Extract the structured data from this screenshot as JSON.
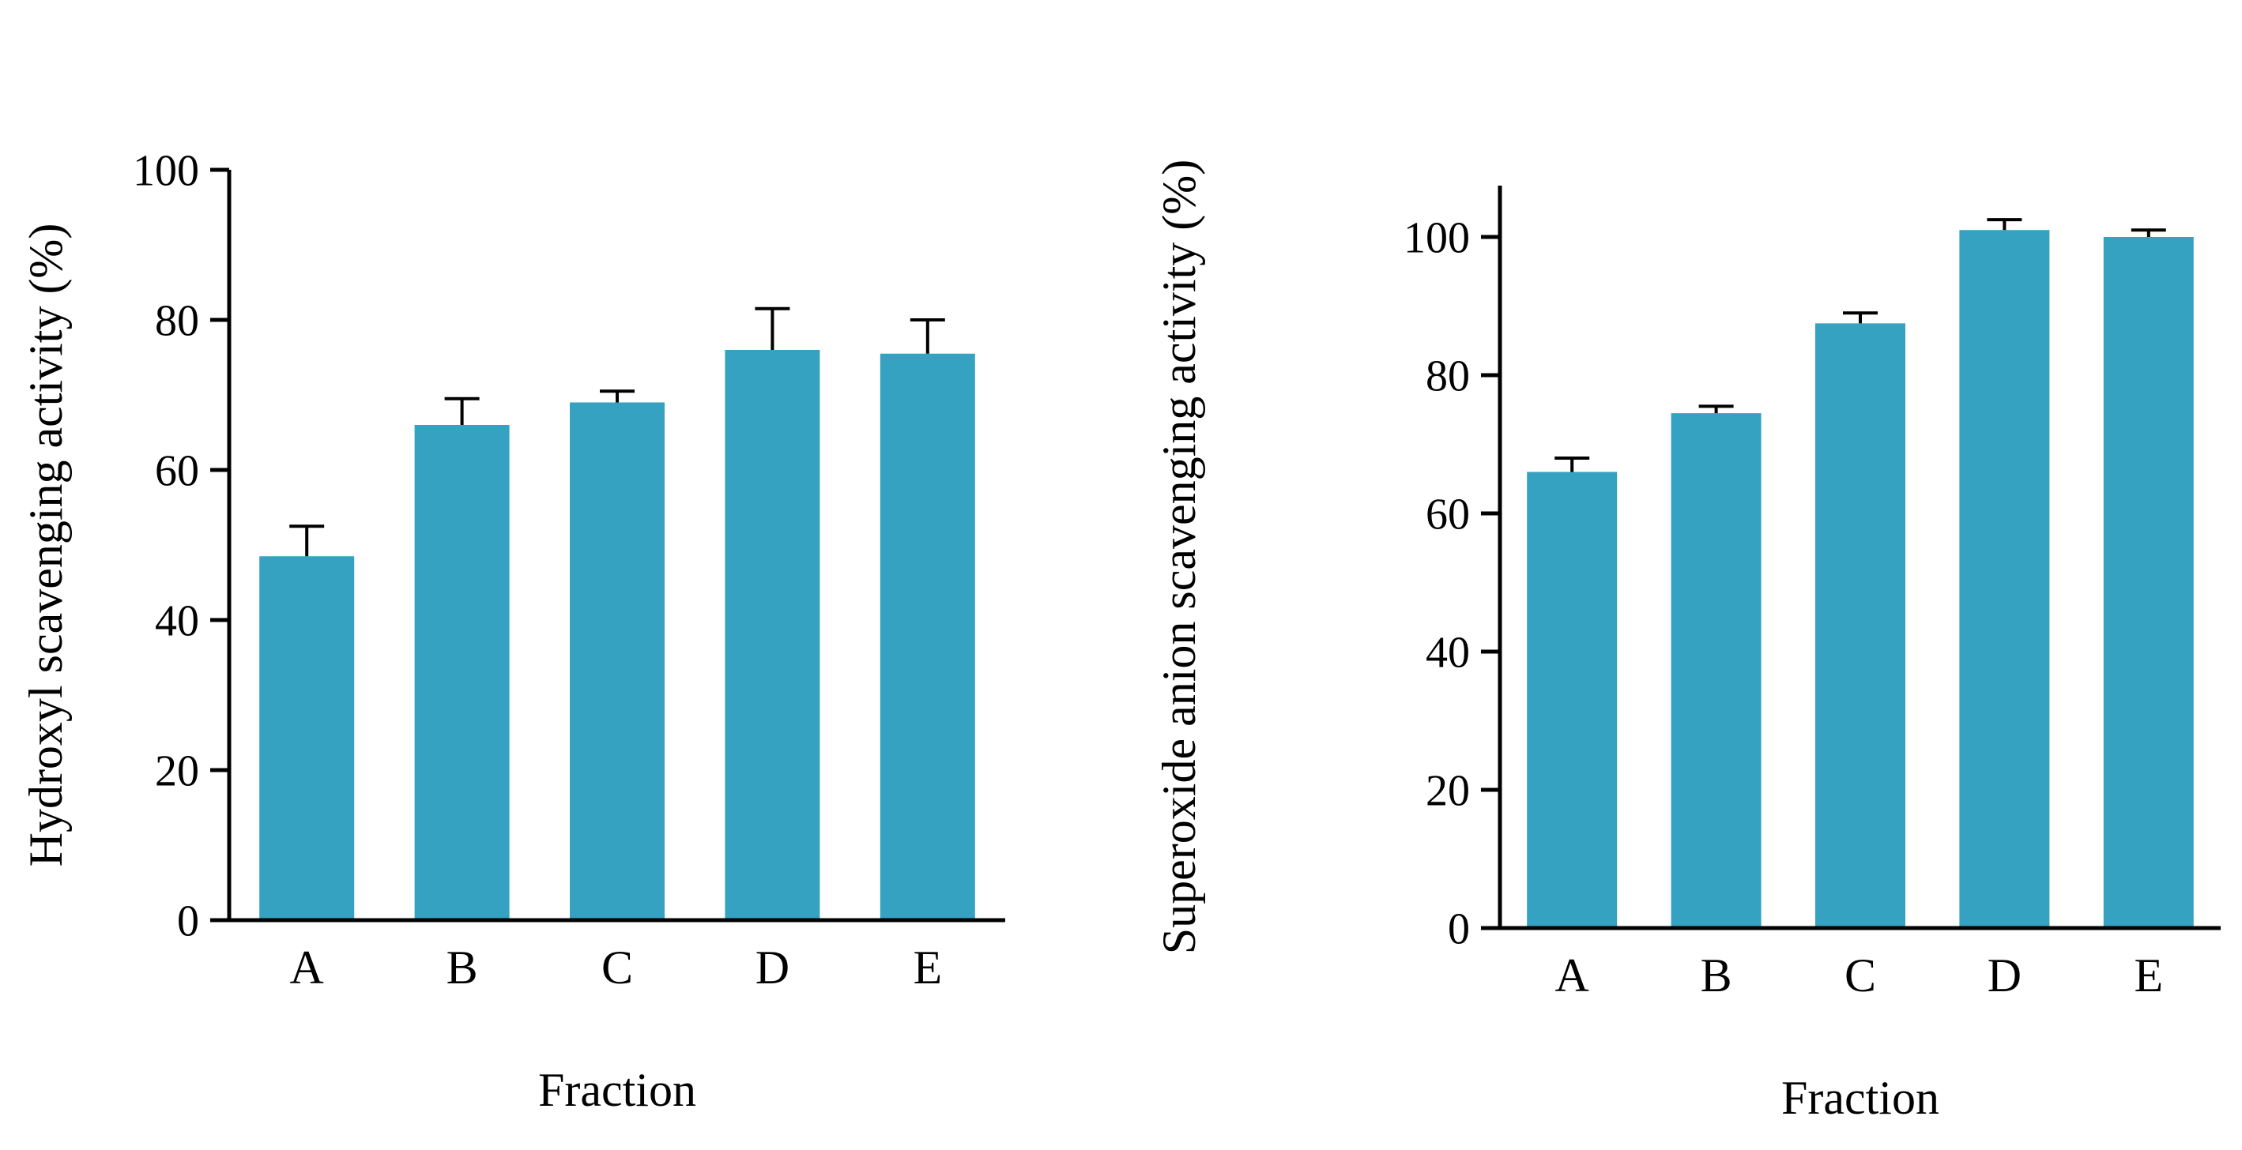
{
  "page": {
    "background": "#ffffff"
  },
  "chart_data": [
    {
      "type": "bar",
      "title": "",
      "categories": [
        "A",
        "B",
        "C",
        "D",
        "E"
      ],
      "values": [
        48.5,
        66,
        69,
        76,
        75.5
      ],
      "errors": [
        4,
        3.5,
        1.5,
        5.5,
        4.5
      ],
      "xlabel": "Fraction",
      "ylabel": "Hydroxyl scavenging activity (%)",
      "ylim": [
        0,
        100
      ],
      "yticks": [
        0,
        20,
        40,
        60,
        80,
        100
      ],
      "grid": false,
      "legend": "none",
      "bar_color": "#35A2C2",
      "error_color": "#000000",
      "axis_color": "#000000"
    },
    {
      "type": "bar",
      "title": "",
      "categories": [
        "A",
        "B",
        "C",
        "D",
        "E"
      ],
      "values": [
        66,
        74.5,
        87.5,
        101,
        100
      ],
      "errors": [
        2,
        1,
        1.5,
        1.5,
        1
      ],
      "xlabel": "Fraction",
      "ylabel": "Superoxide anion scavenging activity (%)",
      "ylim": [
        0,
        110
      ],
      "yticks": [
        0,
        20,
        40,
        60,
        80,
        100
      ],
      "grid": false,
      "legend": "none",
      "bar_color": "#35A2C2",
      "error_color": "#000000",
      "axis_color": "#000000"
    }
  ]
}
